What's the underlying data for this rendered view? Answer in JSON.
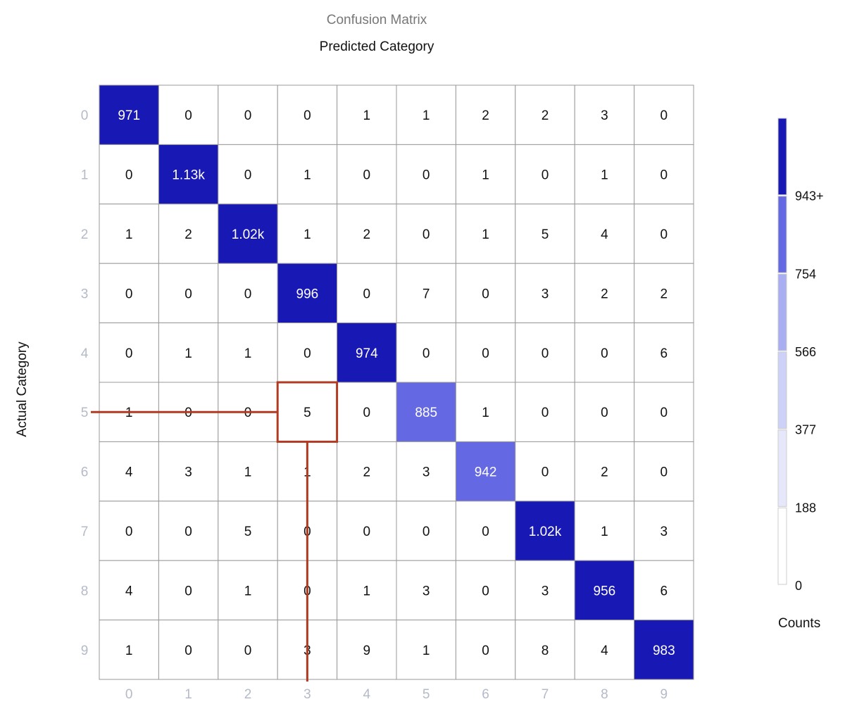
{
  "chart_data": {
    "type": "heatmap",
    "title": "Confusion Matrix",
    "xlabel": "Predicted Category",
    "ylabel": "Actual Category",
    "x_categories": [
      "0",
      "1",
      "2",
      "3",
      "4",
      "5",
      "6",
      "7",
      "8",
      "9"
    ],
    "y_categories": [
      "0",
      "1",
      "2",
      "3",
      "4",
      "5",
      "6",
      "7",
      "8",
      "9"
    ],
    "cell_labels": [
      [
        "971",
        "0",
        "0",
        "0",
        "1",
        "1",
        "2",
        "2",
        "3",
        "0"
      ],
      [
        "0",
        "1.13k",
        "0",
        "1",
        "0",
        "0",
        "1",
        "0",
        "1",
        "0"
      ],
      [
        "1",
        "2",
        "1.02k",
        "1",
        "2",
        "0",
        "1",
        "5",
        "4",
        "0"
      ],
      [
        "0",
        "0",
        "0",
        "996",
        "0",
        "7",
        "0",
        "3",
        "2",
        "2"
      ],
      [
        "0",
        "1",
        "1",
        "0",
        "974",
        "0",
        "0",
        "0",
        "0",
        "6"
      ],
      [
        "1",
        "0",
        "0",
        "5",
        "0",
        "885",
        "1",
        "0",
        "0",
        "0"
      ],
      [
        "4",
        "3",
        "1",
        "1",
        "2",
        "3",
        "942",
        "0",
        "2",
        "0"
      ],
      [
        "0",
        "0",
        "5",
        "0",
        "0",
        "0",
        "0",
        "1.02k",
        "1",
        "3"
      ],
      [
        "4",
        "0",
        "1",
        "0",
        "1",
        "3",
        "0",
        "3",
        "956",
        "6"
      ],
      [
        "1",
        "0",
        "0",
        "3",
        "9",
        "1",
        "0",
        "8",
        "4",
        "983"
      ]
    ],
    "values": [
      [
        971,
        0,
        0,
        0,
        1,
        1,
        2,
        2,
        3,
        0
      ],
      [
        0,
        1130,
        0,
        1,
        0,
        0,
        1,
        0,
        1,
        0
      ],
      [
        1,
        2,
        1020,
        1,
        2,
        0,
        1,
        5,
        4,
        0
      ],
      [
        0,
        0,
        0,
        996,
        0,
        7,
        0,
        3,
        2,
        2
      ],
      [
        0,
        1,
        1,
        0,
        974,
        0,
        0,
        0,
        0,
        6
      ],
      [
        1,
        0,
        0,
        5,
        0,
        885,
        1,
        0,
        0,
        0
      ],
      [
        4,
        3,
        1,
        1,
        2,
        3,
        942,
        0,
        2,
        0
      ],
      [
        0,
        0,
        5,
        0,
        0,
        0,
        0,
        1020,
        1,
        3
      ],
      [
        4,
        0,
        1,
        0,
        1,
        3,
        0,
        3,
        956,
        6
      ],
      [
        1,
        0,
        0,
        3,
        9,
        1,
        0,
        8,
        4,
        983
      ]
    ],
    "highlighted_cell": {
      "actual": "5",
      "predicted": "3"
    },
    "legend": {
      "title": "Counts",
      "position": "right",
      "thresholds": [
        0,
        188,
        377,
        566,
        754,
        943
      ],
      "tick_labels": [
        "0",
        "188",
        "377",
        "566",
        "754",
        "943+"
      ],
      "colors": [
        "#ffffff",
        "#e6e7fb",
        "#cdd0f7",
        "#a9aef2",
        "#6469e3",
        "#1818b5"
      ]
    }
  },
  "colors": {
    "grid": "#999999",
    "tick": "#b5bac8",
    "highlight": "#b23a22",
    "text_dark": "#111111",
    "text_light": "#ffffff"
  }
}
